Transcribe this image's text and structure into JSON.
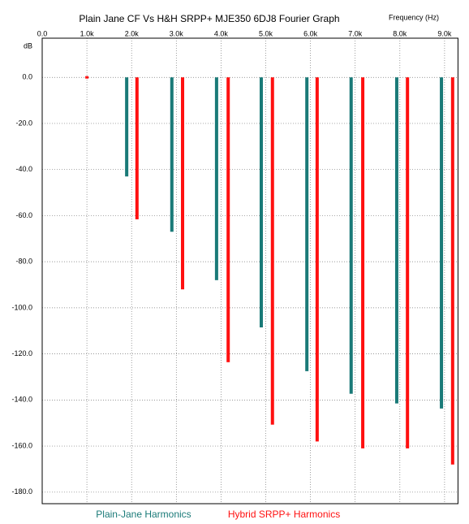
{
  "chart_data": {
    "type": "bar",
    "title": "Plain Jane CF Vs H&H SRPP+ MJE350 6DJ8 Fourier Graph",
    "x_label": "Frequency (Hz)",
    "y_label": "dB",
    "xlim": [
      0,
      9.3
    ],
    "ylim": [
      -185,
      17
    ],
    "xticks": [
      {
        "value": 0,
        "label": "0.0"
      },
      {
        "value": 1,
        "label": "1.0k"
      },
      {
        "value": 2,
        "label": "2.0k"
      },
      {
        "value": 3,
        "label": "3.0k"
      },
      {
        "value": 4,
        "label": "4.0k"
      },
      {
        "value": 5,
        "label": "5.0k"
      },
      {
        "value": 6,
        "label": "6.0k"
      },
      {
        "value": 7,
        "label": "7.0k"
      },
      {
        "value": 8,
        "label": "8.0k"
      },
      {
        "value": 9,
        "label": "9.0k"
      }
    ],
    "yticks": [
      {
        "value": 0,
        "label": "0.0"
      },
      {
        "value": -20,
        "label": "-20.0"
      },
      {
        "value": -40,
        "label": "-40.0"
      },
      {
        "value": -60,
        "label": "-60.0"
      },
      {
        "value": -80,
        "label": "-80.0"
      },
      {
        "value": -100,
        "label": "-100.0"
      },
      {
        "value": -120,
        "label": "-120.0"
      },
      {
        "value": -140,
        "label": "-140.0"
      },
      {
        "value": -160,
        "label": "-160.0"
      },
      {
        "value": -180,
        "label": "-180.0"
      }
    ],
    "grid": true,
    "series": [
      {
        "name": "Plain-Jane Harmonics",
        "color": "#1a7a78",
        "x": [
          1.89,
          2.9,
          3.9,
          4.9,
          5.92,
          6.91,
          7.93,
          8.93
        ],
        "values": [
          -43,
          -67,
          -88,
          -108.5,
          -127.5,
          -137.3,
          -141.5,
          -143.7
        ]
      },
      {
        "name": "Hybrid SRPP+ Harmonics",
        "color": "#ff1010",
        "x": [
          1.0,
          2.12,
          3.14,
          4.16,
          5.15,
          6.15,
          7.17,
          8.17,
          9.18
        ],
        "values": [
          0,
          -61.6,
          -92,
          -123.6,
          -150.7,
          -158,
          -161,
          -161,
          -168
        ]
      }
    ]
  }
}
